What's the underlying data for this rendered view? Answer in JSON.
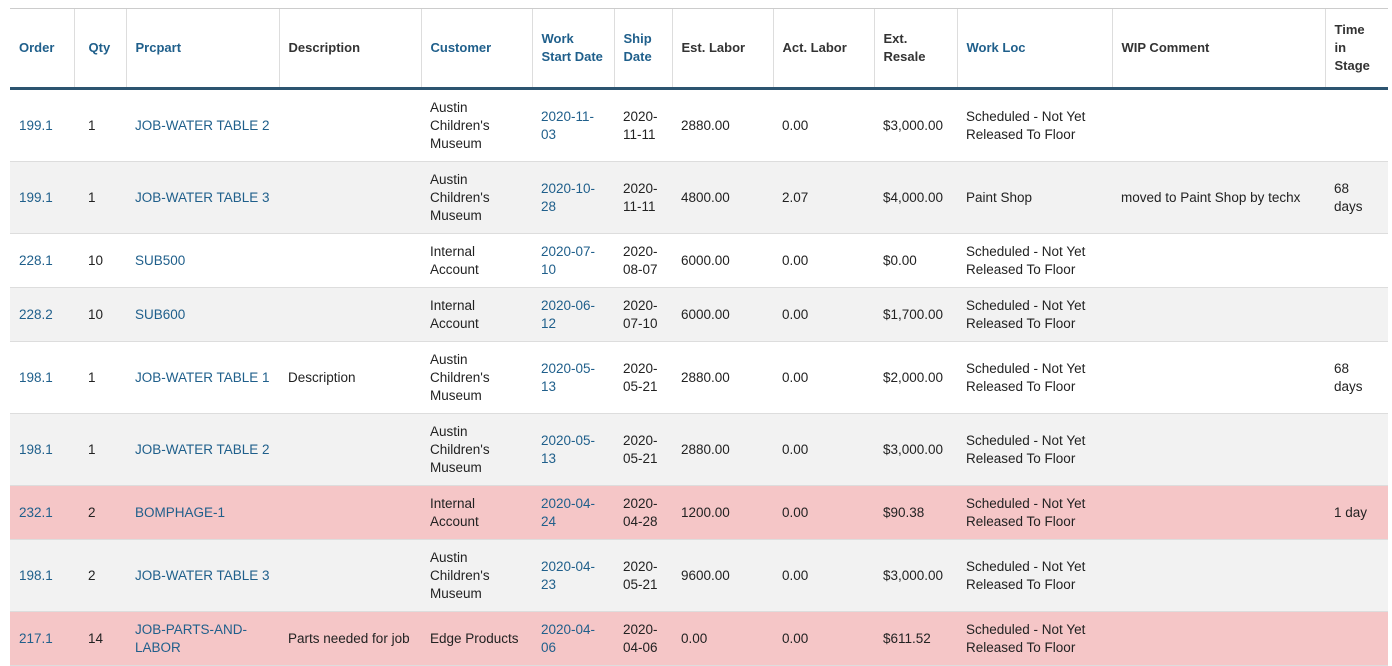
{
  "table": {
    "headers": [
      "Order",
      "Qty",
      "Prcpart",
      "Description",
      "Customer",
      "Work Start Date",
      "Ship Date",
      "Est. Labor",
      "Act. Labor",
      "Ext. Resale",
      "Work Loc",
      "WIP Comment",
      "Time in Stage"
    ],
    "rows": [
      [
        "199.1",
        "1",
        "JOB-WATER TABLE 2",
        null,
        "Austin Children's Museum",
        "2020-11-03",
        "2020-11-11",
        "2880.00",
        "0.00",
        "$3,000.00",
        "Scheduled - Not Yet Released To Floor",
        null,
        null
      ],
      [
        "199.1",
        "1",
        "JOB-WATER TABLE 3",
        null,
        "Austin Children's Museum",
        "2020-10-28",
        "2020-11-11",
        "4800.00",
        "2.07",
        "$4,000.00",
        "Paint Shop",
        "moved to Paint Shop by techx",
        "68 days"
      ],
      [
        "228.1",
        "10",
        "SUB500",
        null,
        "Internal Account",
        "2020-07-10",
        "2020-08-07",
        "6000.00",
        "0.00",
        "$0.00",
        "Scheduled - Not Yet Released To Floor",
        null,
        null
      ],
      [
        "228.2",
        "10",
        "SUB600",
        null,
        "Internal Account",
        "2020-06-12",
        "2020-07-10",
        "6000.00",
        "0.00",
        "$1,700.00",
        "Scheduled - Not Yet Released To Floor",
        null,
        null
      ],
      [
        "198.1",
        "1",
        "JOB-WATER TABLE 1",
        "Description",
        "Austin Children's Museum",
        "2020-05-13",
        "2020-05-21",
        "2880.00",
        "0.00",
        "$2,000.00",
        "Scheduled - Not Yet Released To Floor",
        null,
        "68 days"
      ],
      [
        "198.1",
        "1",
        "JOB-WATER TABLE 2",
        null,
        "Austin Children's Museum",
        "2020-05-13",
        "2020-05-21",
        "2880.00",
        "0.00",
        "$3,000.00",
        "Scheduled - Not Yet Released To Floor",
        null,
        null
      ],
      [
        "232.1",
        "2",
        "BOMPHAGE-1",
        null,
        "Internal Account",
        "2020-04-24",
        "2020-04-28",
        "1200.00",
        "0.00",
        "$90.38",
        "Scheduled - Not Yet Released To Floor",
        null,
        "1 day"
      ],
      [
        "198.1",
        "2",
        "JOB-WATER TABLE 3",
        null,
        "Austin Children's Museum",
        "2020-04-23",
        "2020-05-21",
        "9600.00",
        "0.00",
        "$3,000.00",
        "Scheduled - Not Yet Released To Floor",
        null,
        null
      ],
      [
        "217.1",
        "14",
        "JOB-PARTS-AND-LABOR",
        "Parts needed for job",
        "Edge Products",
        "2020-04-06",
        "2020-04-06",
        "0.00",
        "0.00",
        "$611.52",
        "Scheduled - Not Yet Released To Floor",
        null,
        null
      ]
    ]
  }
}
